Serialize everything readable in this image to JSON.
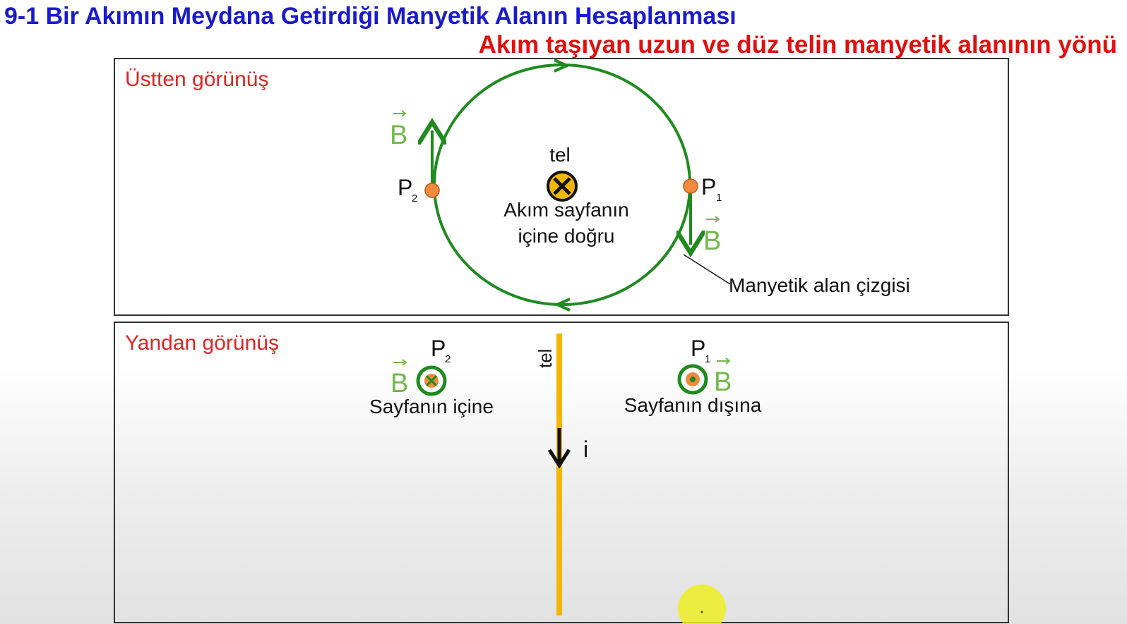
{
  "header": {
    "title": "9-1 Bir Akımın Meydana Getirdiği Manyetik Alanın Hesaplanması",
    "subtitle": "Akım taşıyan uzun ve düz telin manyetik alanının yönü"
  },
  "top_panel": {
    "label": "Üstten görünüş",
    "wire_label": "tel",
    "current_text_line1": "Akım sayfanın",
    "current_text_line2": "içine doğru",
    "point_left": "P",
    "point_left_sub": "2",
    "point_right": "P",
    "point_right_sub": "1",
    "field_vector": "B",
    "field_line_label": "Manyetik alan çizgisi"
  },
  "bottom_panel": {
    "label": "Yandan görünüş",
    "wire_label": "tel",
    "current_symbol": "i",
    "left_point": "P",
    "left_point_sub": "2",
    "left_caption": "Sayfanın içine",
    "right_point": "P",
    "right_point_sub": "1",
    "right_caption": "Sayfanın dışına",
    "field_vector": "B"
  },
  "colors": {
    "title": "#1a1acc",
    "subtitle": "#e01010",
    "panel_label": "#e02424",
    "field_line": "#1f8a1f",
    "vector_label": "#72b84a",
    "point": "#f08a3c",
    "wire": "#f2b705"
  }
}
